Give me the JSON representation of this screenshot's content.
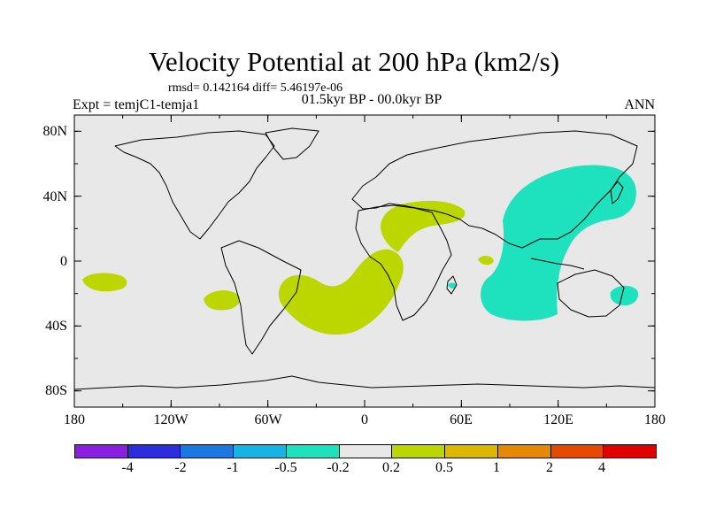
{
  "title": "Velocity Potential at 200 hPa (km2/s)",
  "rmsd_line": "rmsd= 0.142164 diff= 5.46197e-06",
  "expt": "Expt = temjC1-temja1",
  "period": "01.5kyr BP - 00.0kyr BP",
  "season": "ANN",
  "y_axis_labels": [
    "80N",
    "40N",
    "0",
    "40S",
    "80S"
  ],
  "x_axis_labels": [
    "180",
    "120W",
    "60W",
    "0",
    "60E",
    "120E",
    "180"
  ],
  "colorbar": {
    "colors": [
      "#8a1fe0",
      "#2d2ddd",
      "#1a78e0",
      "#14b5e4",
      "#1ee2bd",
      "#e8e8e8",
      "#bcd600",
      "#deb800",
      "#e58a00",
      "#e64a00",
      "#e00000"
    ],
    "labels": [
      "-4",
      "-2",
      "-1",
      "-0.5",
      "-0.2",
      "0.2",
      "0.5",
      "1",
      "2",
      "4"
    ]
  },
  "map": {
    "background_color": "#e8e8e8",
    "coast_color": "#000000",
    "positive_fill": "#bcd600",
    "negative_fill": "#1ee2bd"
  }
}
